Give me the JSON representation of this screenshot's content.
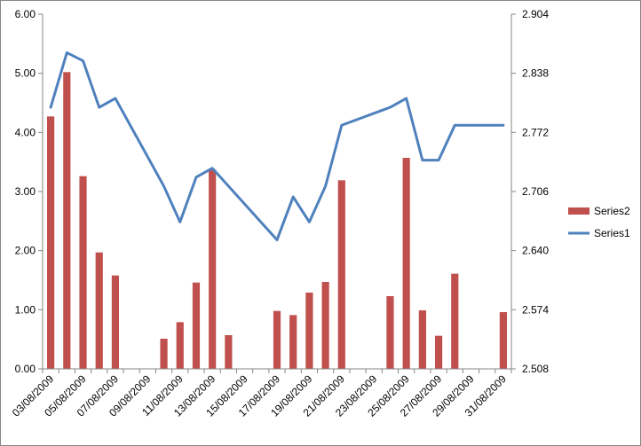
{
  "chart_data": {
    "type": "bar",
    "title": "",
    "xlabel": "",
    "ylabel": "",
    "y_left": {
      "min": 0,
      "max": 6,
      "ticks": [
        "0.00",
        "1.00",
        "2.00",
        "3.00",
        "4.00",
        "5.00",
        "6.00"
      ]
    },
    "y_right": {
      "min": 2.508,
      "max": 2.904,
      "ticks": [
        "2.508",
        "2.574",
        "2.640",
        "2.706",
        "2.772",
        "2.838",
        "2.904"
      ]
    },
    "x": {
      "start": "03/08/2009",
      "end": "31/08/2009",
      "tick_labels": [
        "03/08/2009",
        "05/08/2009",
        "07/08/2009",
        "09/08/2009",
        "11/08/2009",
        "13/08/2009",
        "15/08/2009",
        "17/08/2009",
        "19/08/2009",
        "21/08/2009",
        "23/08/2009",
        "25/08/2009",
        "27/08/2009",
        "29/08/2009",
        "31/08/2009"
      ]
    },
    "legend": {
      "position": "right"
    },
    "grid": false,
    "series": [
      {
        "name": "Series2",
        "type": "bar",
        "axis": "left",
        "color": "#C0504D",
        "points": [
          {
            "x": "03/08/2009",
            "y": 4.27
          },
          {
            "x": "04/08/2009",
            "y": 5.02
          },
          {
            "x": "05/08/2009",
            "y": 3.26
          },
          {
            "x": "06/08/2009",
            "y": 1.97
          },
          {
            "x": "07/08/2009",
            "y": 1.58
          },
          {
            "x": "10/08/2009",
            "y": 0.51
          },
          {
            "x": "11/08/2009",
            "y": 0.79
          },
          {
            "x": "12/08/2009",
            "y": 1.46
          },
          {
            "x": "13/08/2009",
            "y": 3.37
          },
          {
            "x": "14/08/2009",
            "y": 0.57
          },
          {
            "x": "17/08/2009",
            "y": 0.98
          },
          {
            "x": "18/08/2009",
            "y": 0.91
          },
          {
            "x": "19/08/2009",
            "y": 1.29
          },
          {
            "x": "20/08/2009",
            "y": 1.47
          },
          {
            "x": "21/08/2009",
            "y": 3.19
          },
          {
            "x": "24/08/2009",
            "y": 1.23
          },
          {
            "x": "25/08/2009",
            "y": 3.57
          },
          {
            "x": "26/08/2009",
            "y": 0.99
          },
          {
            "x": "27/08/2009",
            "y": 0.56
          },
          {
            "x": "28/08/2009",
            "y": 1.61
          },
          {
            "x": "31/08/2009",
            "y": 0.96
          }
        ]
      },
      {
        "name": "Series1",
        "type": "line",
        "axis": "right",
        "color": "#4F81BD",
        "points": [
          {
            "x": "03/08/2009",
            "y": 2.8
          },
          {
            "x": "04/08/2009",
            "y": 2.861
          },
          {
            "x": "05/08/2009",
            "y": 2.852
          },
          {
            "x": "06/08/2009",
            "y": 2.8
          },
          {
            "x": "07/08/2009",
            "y": 2.81
          },
          {
            "x": "10/08/2009",
            "y": 2.712
          },
          {
            "x": "11/08/2009",
            "y": 2.672
          },
          {
            "x": "12/08/2009",
            "y": 2.722
          },
          {
            "x": "13/08/2009",
            "y": 2.732
          },
          {
            "x": "17/08/2009",
            "y": 2.652
          },
          {
            "x": "18/08/2009",
            "y": 2.7
          },
          {
            "x": "19/08/2009",
            "y": 2.672
          },
          {
            "x": "20/08/2009",
            "y": 2.712
          },
          {
            "x": "21/08/2009",
            "y": 2.78
          },
          {
            "x": "24/08/2009",
            "y": 2.8
          },
          {
            "x": "25/08/2009",
            "y": 2.81
          },
          {
            "x": "26/08/2009",
            "y": 2.741
          },
          {
            "x": "27/08/2009",
            "y": 2.741
          },
          {
            "x": "28/08/2009",
            "y": 2.78
          },
          {
            "x": "31/08/2009",
            "y": 2.78
          }
        ]
      }
    ]
  }
}
